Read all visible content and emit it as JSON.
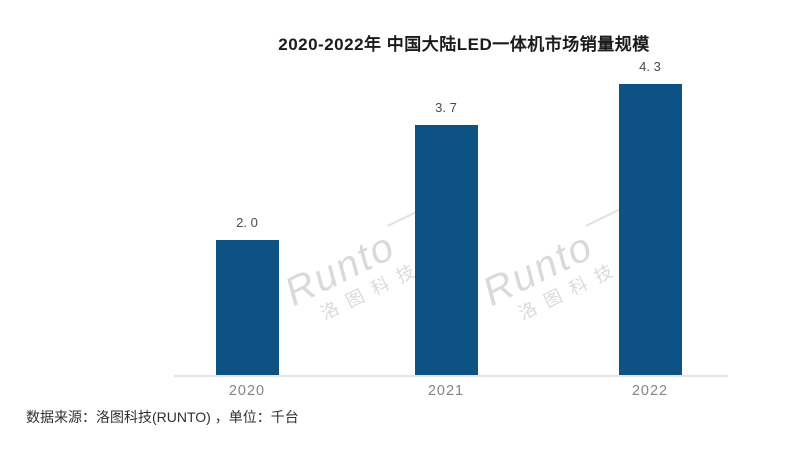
{
  "chart_data": {
    "type": "bar",
    "title": "2020-2022年 中国大陆LED一体机市场销量规模",
    "categories": [
      "2020",
      "2021",
      "2022"
    ],
    "values": [
      2.0,
      3.7,
      4.3
    ],
    "value_labels": [
      "2. 0",
      "3. 7",
      "4. 3"
    ],
    "unit": "千台",
    "ylim": [
      0,
      4.5
    ],
    "bar_color": "#0D5285",
    "gridlines": false,
    "legend": "none",
    "y_axis_visible": false,
    "x_axis_line_color": "#e4e4e4"
  },
  "footer": {
    "text": "数据来源：洛图科技(RUNTO) ，单位：千台"
  },
  "watermark": {
    "latin": "Runto",
    "cjk": "洛图科技"
  },
  "colors": {
    "bar": "#0D5285",
    "axis_line": "#e4e4e4",
    "tick_label": "#858585",
    "value_label": "#4a4a4a",
    "title": "#1b1b1b",
    "footer": "#2f2f2f",
    "watermark": "rgba(0,0,0,0.15)",
    "background": "#ffffff"
  }
}
